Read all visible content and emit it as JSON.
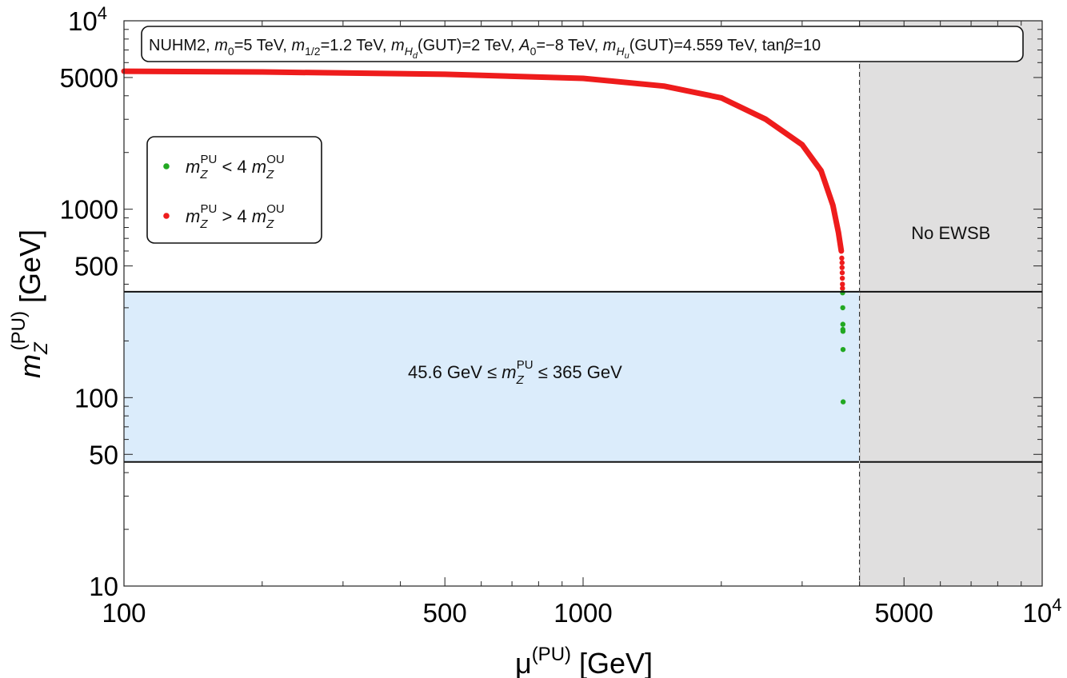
{
  "chart_data": {
    "type": "scatter",
    "x_scale": "log",
    "y_scale": "log",
    "xlim": [
      100,
      10000
    ],
    "ylim": [
      10,
      10000
    ],
    "x_ticks": [
      {
        "value": 100,
        "label": "100"
      },
      {
        "value": 500,
        "label": "500"
      },
      {
        "value": 1000,
        "label": "1000"
      },
      {
        "value": 5000,
        "label": "5000"
      },
      {
        "value": 10000,
        "label": "10",
        "sup": "4"
      }
    ],
    "y_ticks": [
      {
        "value": 10,
        "label": "10"
      },
      {
        "value": 50,
        "label": "50"
      },
      {
        "value": 100,
        "label": "100"
      },
      {
        "value": 500,
        "label": "500"
      },
      {
        "value": 1000,
        "label": "1000"
      },
      {
        "value": 5000,
        "label": "5000"
      },
      {
        "value": 10000,
        "label": "10",
        "sup": "4"
      }
    ],
    "xlabel": {
      "base": "μ",
      "sup": "(PU)",
      "unit": "[GeV]"
    },
    "ylabel": {
      "base": "m",
      "sub": "Z",
      "sup": "(PU)",
      "unit": "[GeV]"
    },
    "title_box": {
      "parts": [
        {
          "t": "NUHM2, "
        },
        {
          "t": "m",
          "i": true
        },
        {
          "t": "0",
          "sub": true
        },
        {
          "t": "=5 TeV, "
        },
        {
          "t": "m",
          "i": true
        },
        {
          "t": "1/2",
          "sub": true
        },
        {
          "t": "=1.2 TeV, "
        },
        {
          "t": "m",
          "i": true
        },
        {
          "t": "H",
          "sub": true,
          "i": true
        },
        {
          "t": "d",
          "subsub": true,
          "i": true
        },
        {
          "t": "(GUT)=2 TeV, "
        },
        {
          "t": "A",
          "i": true
        },
        {
          "t": "0",
          "sub": true
        },
        {
          "t": "=−8 TeV, "
        },
        {
          "t": "m",
          "i": true
        },
        {
          "t": "H",
          "sub": true,
          "i": true
        },
        {
          "t": "u",
          "subsub": true,
          "i": true
        },
        {
          "t": "(GUT)=4.559 TeV, tan"
        },
        {
          "t": "β",
          "i": true
        },
        {
          "t": "=10"
        }
      ]
    },
    "legend": {
      "placement": "top-left",
      "entries": [
        {
          "color": "#22a822",
          "op": "<",
          "factor": "4"
        },
        {
          "color": "#ee1c1c",
          "op": ">",
          "factor": "4"
        }
      ]
    },
    "band": {
      "y_min": 45.6,
      "y_max": 365,
      "x_max": 4000,
      "color": "#dbecfb",
      "label_pre": "45.6 GeV ≤ ",
      "label_post": " ≤ 365 GeV"
    },
    "no_ewsb": {
      "x_min": 4000,
      "label": "No EWSB",
      "color": "#e0dfdf"
    },
    "series": [
      {
        "color": "#ee1c1c",
        "curve": [
          [
            100,
            5400
          ],
          [
            200,
            5350
          ],
          [
            500,
            5200
          ],
          [
            1000,
            4950
          ],
          [
            1500,
            4500
          ],
          [
            2000,
            3900
          ],
          [
            2500,
            3000
          ],
          [
            3000,
            2200
          ],
          [
            3300,
            1600
          ],
          [
            3500,
            1050
          ],
          [
            3600,
            750
          ],
          [
            3650,
            600
          ]
        ],
        "points": [
          [
            3660,
            550
          ],
          [
            3665,
            520
          ],
          [
            3665,
            490
          ],
          [
            3668,
            460
          ],
          [
            3670,
            430
          ],
          [
            3672,
            400
          ],
          [
            3673,
            380
          ]
        ]
      },
      {
        "color": "#22a822",
        "points": [
          [
            3675,
            360
          ],
          [
            3678,
            300
          ],
          [
            3680,
            245
          ],
          [
            3680,
            230
          ],
          [
            3682,
            225
          ],
          [
            3683,
            180
          ],
          [
            3685,
            95
          ]
        ]
      }
    ]
  }
}
